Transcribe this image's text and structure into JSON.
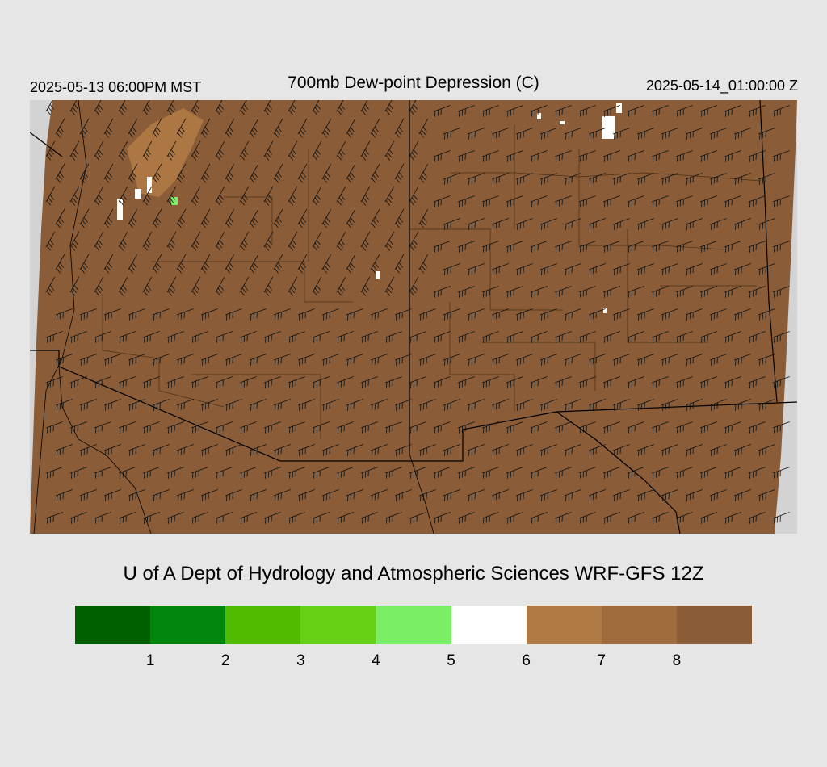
{
  "header": {
    "valid_local": "2025-05-13 06:00PM MST",
    "title": "700mb Dew-point Depression (C)",
    "valid_utc": "2025-05-14_01:00:00 Z"
  },
  "credit": "U of A Dept of Hydrology and Atmospheric Sciences WRF-GFS 12Z",
  "map": {
    "field_color": "#8a5c37",
    "moist_color": "#b07a45",
    "outside_color": "#d3d3d3",
    "barb_color": "#111111",
    "boundary_color": "#000000"
  },
  "legend": {
    "colors": [
      "#005f00",
      "#00860a",
      "#50bb00",
      "#66d017",
      "#7aee64",
      "#ffffff",
      "#b07a45",
      "#a06c3e",
      "#8a5c37"
    ],
    "ticks": [
      "1",
      "2",
      "3",
      "4",
      "5",
      "6",
      "7",
      "8"
    ]
  }
}
